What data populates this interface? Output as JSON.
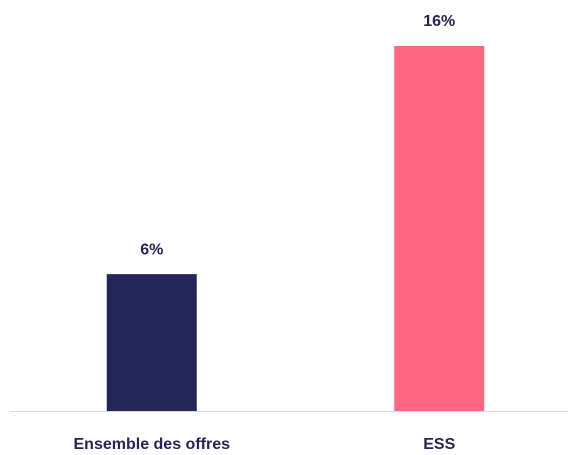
{
  "chart_data": {
    "type": "bar",
    "categories": [
      "Ensemble des offres",
      "ESS"
    ],
    "values": [
      6,
      16
    ],
    "value_labels": [
      "6%",
      "16%"
    ],
    "colors": [
      "#242659",
      "#ff6681"
    ]
  }
}
